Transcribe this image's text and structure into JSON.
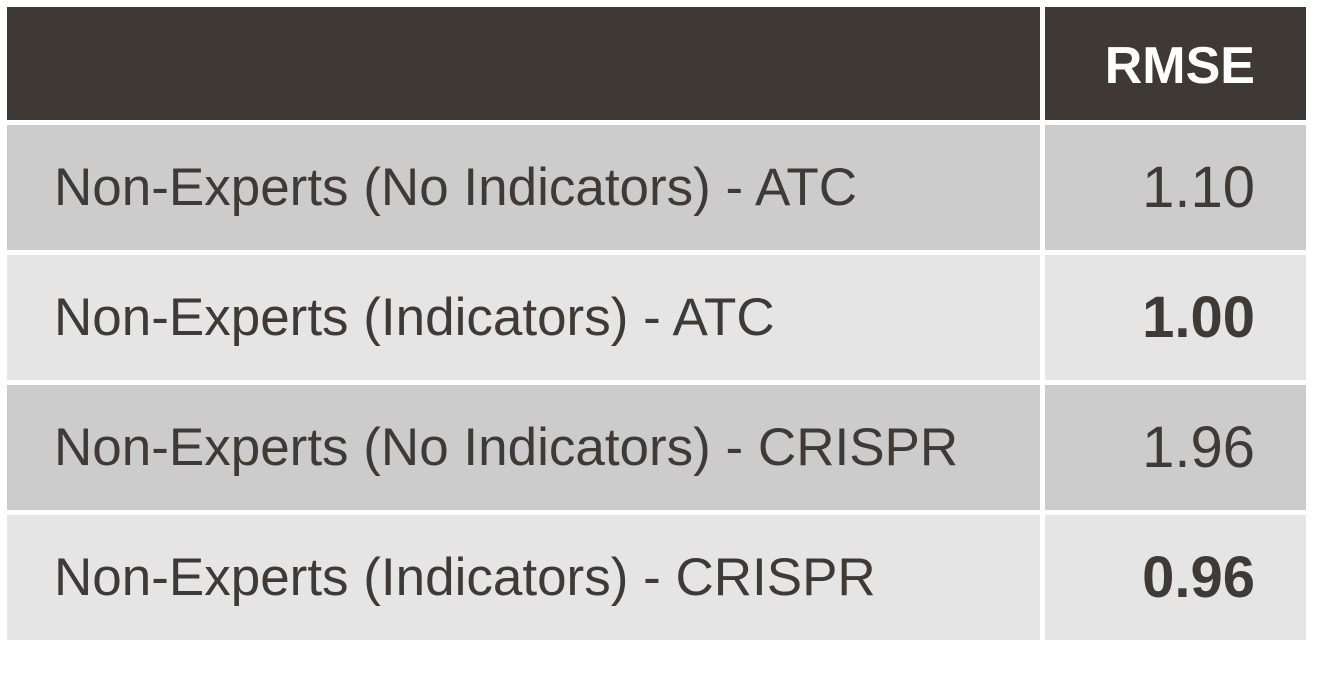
{
  "chart_data": {
    "type": "table",
    "columns": [
      "",
      "RMSE"
    ],
    "rows": [
      {
        "label": "Non-Experts (No Indicators) - ATC",
        "value": "1.10",
        "bold": false
      },
      {
        "label": "Non-Experts (Indicators) - ATC",
        "value": "1.00",
        "bold": true
      },
      {
        "label": "Non-Experts (No Indicators) - CRISPR",
        "value": "1.96",
        "bold": false
      },
      {
        "label": "Non-Experts (Indicators) - CRISPR",
        "value": "0.96",
        "bold": true
      }
    ]
  },
  "colors": {
    "header_bg": "#3f3935",
    "header_text": "#ffffff",
    "row_dark": "#cccccc",
    "row_light": "#e5e5e5",
    "body_text": "#403a36"
  }
}
